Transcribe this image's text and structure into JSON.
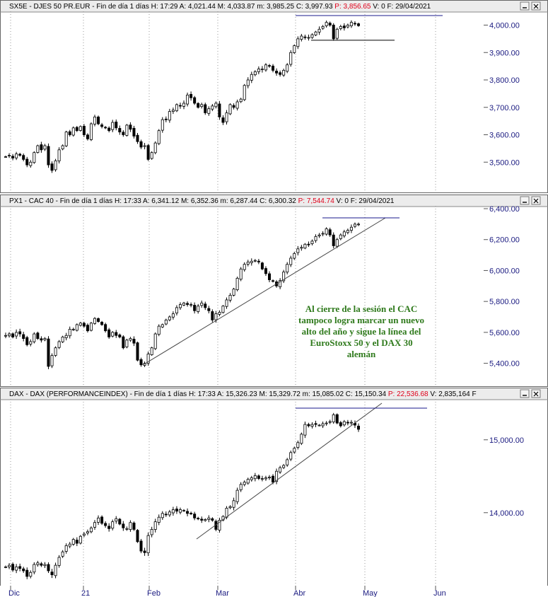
{
  "panels": [
    {
      "header": [
        {
          "t": "SX5E - DJES 50 PR.EUR - Fin de día 1 días",
          "c": "#000"
        },
        {
          "t": "H: 17:29",
          "c": "#000"
        },
        {
          "t": "A: 4,021.44",
          "c": "#000"
        },
        {
          "t": "M: 4,033.87",
          "c": "#000"
        },
        {
          "t": "m: 3,985.25",
          "c": "#000"
        },
        {
          "t": "C: 3,997.93",
          "c": "#000"
        },
        {
          "t": "P: 3,856.65",
          "c": "#e0001a"
        },
        {
          "t": "V: 0",
          "c": "#000"
        },
        {
          "t": "F: 29/04/2021",
          "c": "#000"
        }
      ],
      "yticks": [
        "4,000.00",
        "3,900.00",
        "3,800.00",
        "3,700.00",
        "3,600.00",
        "3,500.00"
      ]
    },
    {
      "header": [
        {
          "t": "PX1 - CAC 40 - Fin de día 1 días",
          "c": "#000"
        },
        {
          "t": "H: 17:33",
          "c": "#000"
        },
        {
          "t": "A: 6,341.12",
          "c": "#000"
        },
        {
          "t": "M: 6,352.36",
          "c": "#000"
        },
        {
          "t": "m: 6,287.44",
          "c": "#000"
        },
        {
          "t": "C: 6,300.32",
          "c": "#000"
        },
        {
          "t": "P: 7,544.74",
          "c": "#e0001a"
        },
        {
          "t": "V: 0",
          "c": "#000"
        },
        {
          "t": "F: 29/04/2021",
          "c": "#000"
        }
      ],
      "yticks": [
        "6,400.00",
        "6,200.00",
        "6,000.00",
        "5,800.00",
        "5,600.00",
        "5,400.00"
      ]
    },
    {
      "header": [
        {
          "t": "DAX - DAX (PERFORMANCEINDEX) - Fin de día 1 días",
          "c": "#000"
        },
        {
          "t": "H: 17:33",
          "c": "#000"
        },
        {
          "t": "A: 15,326.23",
          "c": "#000"
        },
        {
          "t": "M: 15,329.72",
          "c": "#000"
        },
        {
          "t": "m: 15,085.02",
          "c": "#000"
        },
        {
          "t": "C: 15,150.34",
          "c": "#000"
        },
        {
          "t": "P: 22,536.68",
          "c": "#e0001a"
        },
        {
          "t": "V: 2,835,164",
          "c": "#000"
        },
        {
          "t": "F",
          "c": "#000"
        }
      ],
      "yticks": [
        "15,000.00",
        "14,000.00"
      ]
    }
  ],
  "xaxis_labels": [
    "Dic",
    "21",
    "Feb",
    "Mar",
    "Abr",
    "May",
    "Jun"
  ],
  "annotation": [
    "Al cierre de la sesión el CAC",
    "tampoco logra marcar un nuevo",
    "alto del año y sigue la línea del",
    "EuroStoxx 50 y el DAX 30",
    "alemán"
  ],
  "colors": {
    "header_bg": "#ececec",
    "axis_text": "#1a1a80",
    "price_red": "#e0001a",
    "annotation": "#2f7a1c",
    "level_line": "#1a1a8c"
  },
  "chart_data": [
    {
      "type": "candlestick",
      "title": "SX5E - DJES 50 PR.EUR",
      "ylim": [
        3400,
        4040
      ],
      "x_range": [
        "2020-11-30",
        "2021-06-07"
      ],
      "closes": [
        3520,
        3525,
        3515,
        3530,
        3525,
        3510,
        3490,
        3500,
        3535,
        3560,
        3545,
        3560,
        3490,
        3470,
        3505,
        3545,
        3560,
        3610,
        3600,
        3625,
        3615,
        3630,
        3600,
        3585,
        3640,
        3665,
        3640,
        3630,
        3625,
        3615,
        3645,
        3625,
        3610,
        3600,
        3635,
        3620,
        3595,
        3575,
        3555,
        3560,
        3510,
        3535,
        3570,
        3615,
        3655,
        3655,
        3685,
        3690,
        3710,
        3705,
        3715,
        3745,
        3735,
        3715,
        3700,
        3710,
        3680,
        3695,
        3705,
        3715,
        3665,
        3645,
        3680,
        3710,
        3700,
        3720,
        3730,
        3780,
        3800,
        3820,
        3830,
        3840,
        3840,
        3855,
        3850,
        3835,
        3825,
        3820,
        3835,
        3855,
        3900,
        3925,
        3950,
        3960,
        3955,
        3955,
        3965,
        3975,
        3985,
        3995,
        4010,
        4000,
        3950,
        3985,
        3995,
        3990,
        4000,
        4010,
        4005,
        3998
      ]
    },
    {
      "type": "candlestick",
      "title": "PX1 - CAC 40",
      "ylim": [
        5270,
        6400
      ],
      "x_range": [
        "2020-11-30",
        "2021-06-07"
      ],
      "closes": [
        5580,
        5590,
        5570,
        5600,
        5590,
        5560,
        5520,
        5540,
        5590,
        5560,
        5550,
        5560,
        5380,
        5450,
        5500,
        5540,
        5570,
        5580,
        5620,
        5620,
        5650,
        5660,
        5640,
        5610,
        5660,
        5690,
        5670,
        5650,
        5610,
        5570,
        5600,
        5580,
        5570,
        5500,
        5550,
        5560,
        5530,
        5420,
        5390,
        5400,
        5460,
        5500,
        5590,
        5640,
        5650,
        5680,
        5700,
        5720,
        5760,
        5780,
        5790,
        5780,
        5780,
        5740,
        5770,
        5790,
        5760,
        5740,
        5680,
        5720,
        5730,
        5770,
        5810,
        5840,
        5880,
        5950,
        6010,
        6040,
        6055,
        6060,
        6065,
        6055,
        6010,
        5980,
        5940,
        5930,
        5900,
        5935,
        5990,
        6040,
        6080,
        6110,
        6140,
        6150,
        6170,
        6170,
        6190,
        6220,
        6230,
        6240,
        6270,
        6230,
        6160,
        6200,
        6230,
        6250,
        6260,
        6280,
        6300,
        6300
      ],
      "trendline": "ascending support line (Jan → Apr)",
      "resistance": "horizontal line at the year high"
    },
    {
      "type": "candlestick",
      "title": "DAX - DAX (PERFORMANCEINDEX)",
      "ylim": [
        13100,
        15550
      ],
      "x_range": [
        "2020-11-30",
        "2021-06-07"
      ],
      "closes": [
        13300,
        13320,
        13260,
        13300,
        13280,
        13250,
        13180,
        13230,
        13330,
        13350,
        13320,
        13330,
        13250,
        13200,
        13320,
        13420,
        13490,
        13570,
        13590,
        13650,
        13600,
        13690,
        13720,
        13750,
        13800,
        13870,
        13930,
        13860,
        13830,
        13790,
        13880,
        13920,
        13850,
        13800,
        13790,
        13870,
        13780,
        13620,
        13500,
        13480,
        13700,
        13780,
        13880,
        13940,
        13990,
        13980,
        14010,
        14040,
        14020,
        14040,
        14030,
        13990,
        13990,
        13930,
        13920,
        13900,
        13910,
        13930,
        13900,
        13780,
        13900,
        13950,
        14060,
        14080,
        14160,
        14300,
        14380,
        14410,
        14450,
        14470,
        14500,
        14460,
        14460,
        14470,
        14480,
        14410,
        14560,
        14610,
        14640,
        14720,
        14820,
        14880,
        14960,
        15080,
        15220,
        15200,
        15220,
        15220,
        15210,
        15230,
        15240,
        15260,
        15360,
        15240,
        15200,
        15260,
        15240,
        15250,
        15210,
        15150
      ]
    }
  ]
}
